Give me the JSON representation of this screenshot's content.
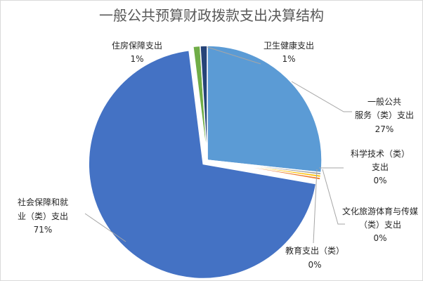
{
  "chart_data": {
    "type": "pie",
    "title": "一般公共预算财政拨款支出决算结构",
    "slices": [
      {
        "name": "一般公共服务（类）支出",
        "value": 27,
        "label": "27%",
        "color": "#5B9BD5",
        "exploded": false
      },
      {
        "name": "科学技术（类）支出",
        "value": 0,
        "label": "0%",
        "color": "#A5A5A5",
        "exploded": false
      },
      {
        "name": "文化旅游体育与传媒（类）支出",
        "value": 0,
        "label": "0%",
        "color": "#FFC000",
        "exploded": false
      },
      {
        "name": "教育支出（类）",
        "value": 0,
        "label": "0%",
        "color": "#ED7D31",
        "exploded": false
      },
      {
        "name": "社会保障和就业（类）支出",
        "value": 71,
        "label": "71%",
        "color": "#4472C4",
        "exploded": true
      },
      {
        "name": "住房保障支出",
        "value": 1,
        "label": "1%",
        "color": "#70AD47",
        "exploded": false
      },
      {
        "name": "卫生健康支出",
        "value": 1,
        "label": "1%",
        "color": "#264478",
        "exploded": false
      }
    ]
  }
}
